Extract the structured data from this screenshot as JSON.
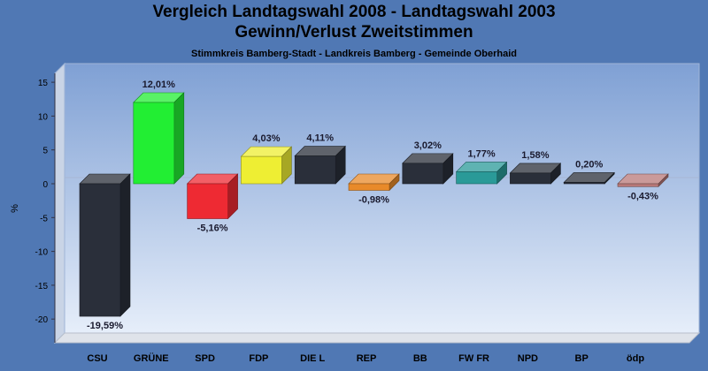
{
  "chart_data": {
    "type": "bar",
    "title": "Vergleich Landtagswahl 2008 - Landtagswahl 2003",
    "subtitle": "Gewinn/Verlust Zweitstimmen",
    "caption": "Stimmkreis Bamberg-Stadt - Landkreis Bamberg - Gemeinde Oberhaid",
    "ylabel": "%",
    "xlabel": "",
    "ylim": [
      -22,
      17
    ],
    "yticks": [
      15,
      10,
      5,
      0,
      -5,
      -10,
      -15,
      -20
    ],
    "grid": false,
    "categories": [
      "CSU",
      "GRÜNE",
      "SPD",
      "FDP",
      "DIE L",
      "REP",
      "BB",
      "FW FR",
      "NPD",
      "BP",
      "ödp"
    ],
    "values": [
      -19.59,
      12.01,
      -5.16,
      4.03,
      4.11,
      -0.98,
      3.02,
      1.77,
      1.58,
      0.2,
      -0.43
    ],
    "data_labels": [
      "-19,59%",
      "12,01%",
      "-5,16%",
      "4,03%",
      "4,11%",
      "-0,98%",
      "3,02%",
      "1,77%",
      "1,58%",
      "0,20%",
      "-0,43%"
    ],
    "colors": [
      "#2a2f3a",
      "#22ee33",
      "#ee2a33",
      "#eeee33",
      "#2a2f3a",
      "#e88a2a",
      "#2a2f3a",
      "#2a9a98",
      "#2a2f3a",
      "#2a2f3a",
      "#b87878"
    ]
  }
}
